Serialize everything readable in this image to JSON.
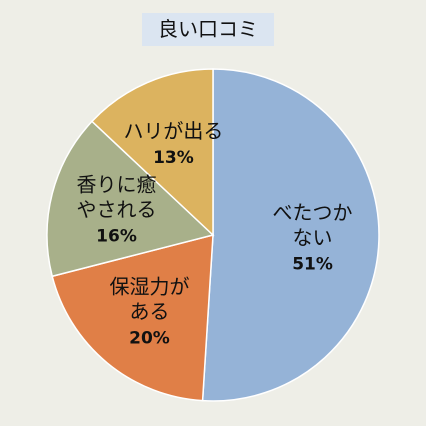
{
  "chart_data": {
    "type": "pie",
    "title": "良い口コミ",
    "categories": [
      "べたつか\nない",
      "保湿力が\nある",
      "香りに癒\nやされる",
      "ハリが出る"
    ],
    "values": [
      51,
      20,
      16,
      13
    ],
    "value_labels": [
      "51%",
      "20%",
      "16%",
      "13%"
    ],
    "colors": [
      "#95b3d7",
      "#e07f47",
      "#a8b08a",
      "#dcb35f"
    ]
  }
}
